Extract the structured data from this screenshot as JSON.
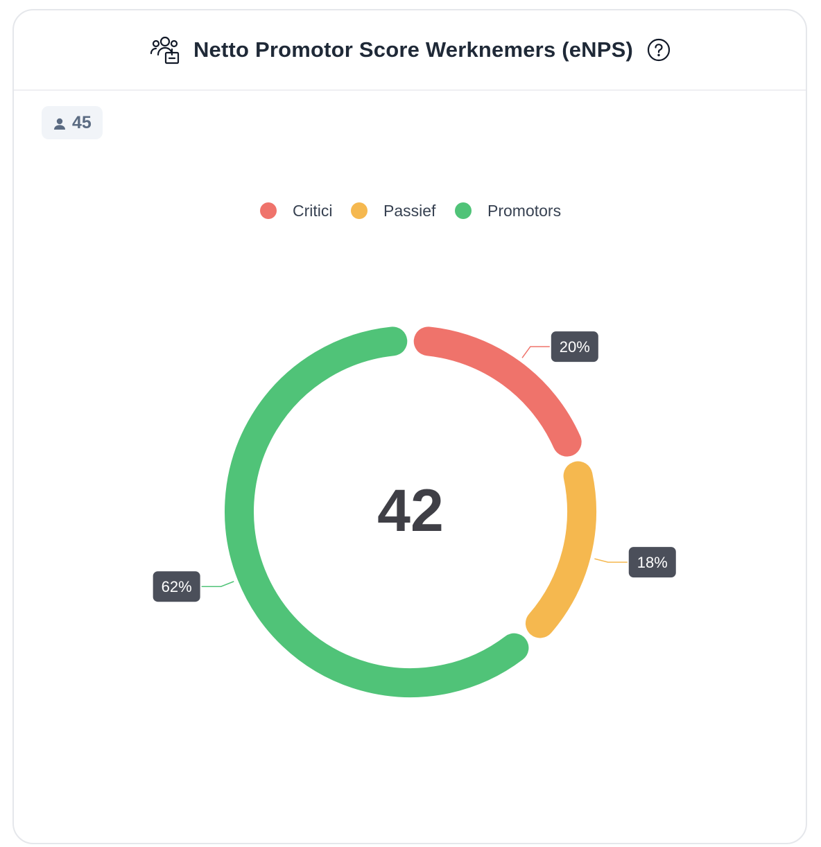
{
  "header": {
    "title": "Netto Promotor Score Werknemers (eNPS)",
    "icon": "people-group-icon",
    "help_icon": "help-circle-icon"
  },
  "respondents": {
    "icon": "person-icon",
    "count": "45"
  },
  "chart_data": {
    "type": "pie",
    "subtype": "donut",
    "legend_position": "top-center",
    "center_label": "42",
    "series": [
      {
        "name": "Critici",
        "value": 20,
        "label": "20%",
        "color": "#ef736b"
      },
      {
        "name": "Passief",
        "value": 18,
        "label": "18%",
        "color": "#f5b84f"
      },
      {
        "name": "Promotors",
        "value": 62,
        "label": "62%",
        "color": "#50c378"
      }
    ]
  }
}
